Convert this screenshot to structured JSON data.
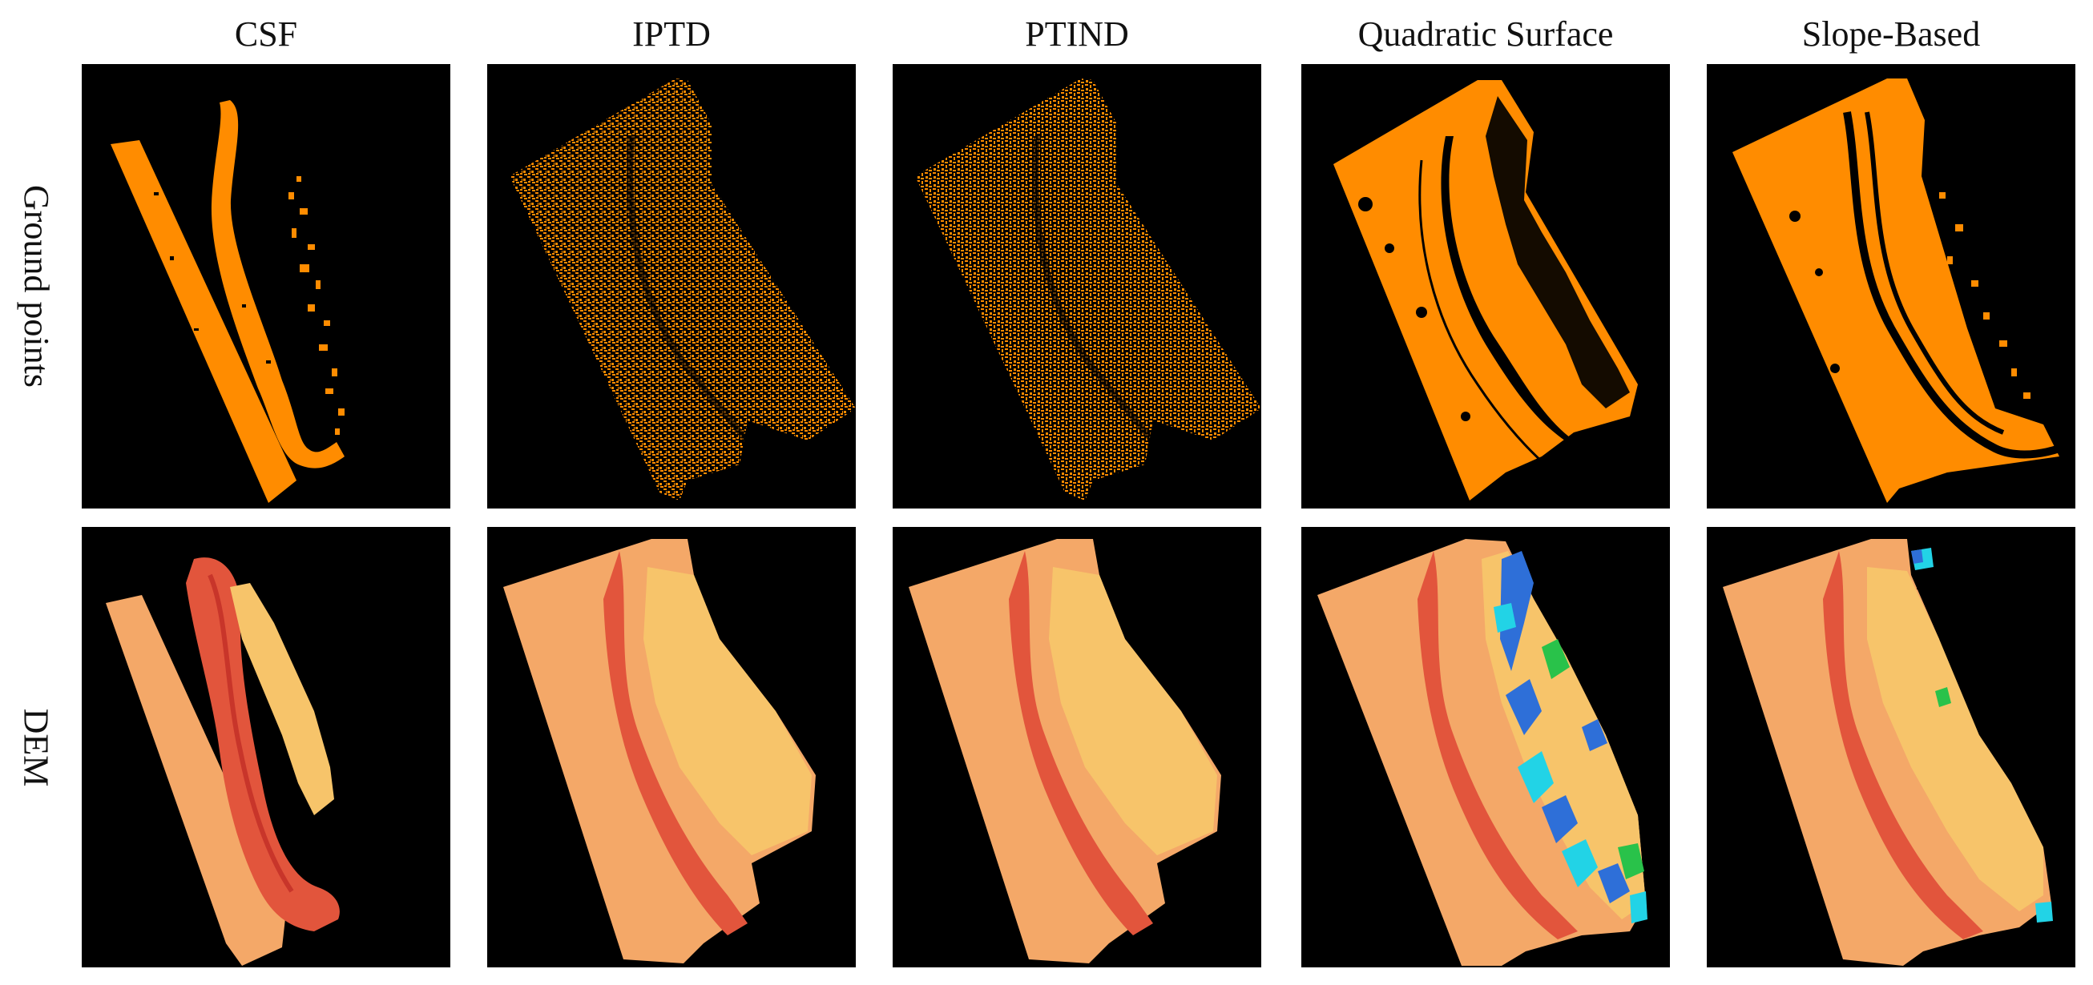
{
  "columns": [
    "CSF",
    "IPTD",
    "PTIND",
    "Quadratic Surface",
    "Slope-Based"
  ],
  "rows": [
    "Ground points",
    "DEM"
  ],
  "colors": {
    "background": "#000000",
    "ground": "#FF8C00",
    "dem_base": "#F4A868",
    "dem_ridge": "#E2553C",
    "dem_high": "#F7C46A",
    "artifact_blue": "#2E6FD8",
    "artifact_cyan": "#22D3E6",
    "artifact_green": "#29C24A"
  },
  "panels": {
    "csf_ground": "csf-ground-points-panel",
    "iptd_ground": "iptd-ground-points-panel",
    "ptind_ground": "ptind-ground-points-panel",
    "quadratic_ground": "quadratic-surface-ground-points-panel",
    "slope_ground": "slope-based-ground-points-panel",
    "csf_dem": "csf-dem-panel",
    "iptd_dem": "iptd-dem-panel",
    "ptind_dem": "ptind-dem-panel",
    "quadratic_dem": "quadratic-surface-dem-panel",
    "slope_dem": "slope-based-dem-panel"
  }
}
